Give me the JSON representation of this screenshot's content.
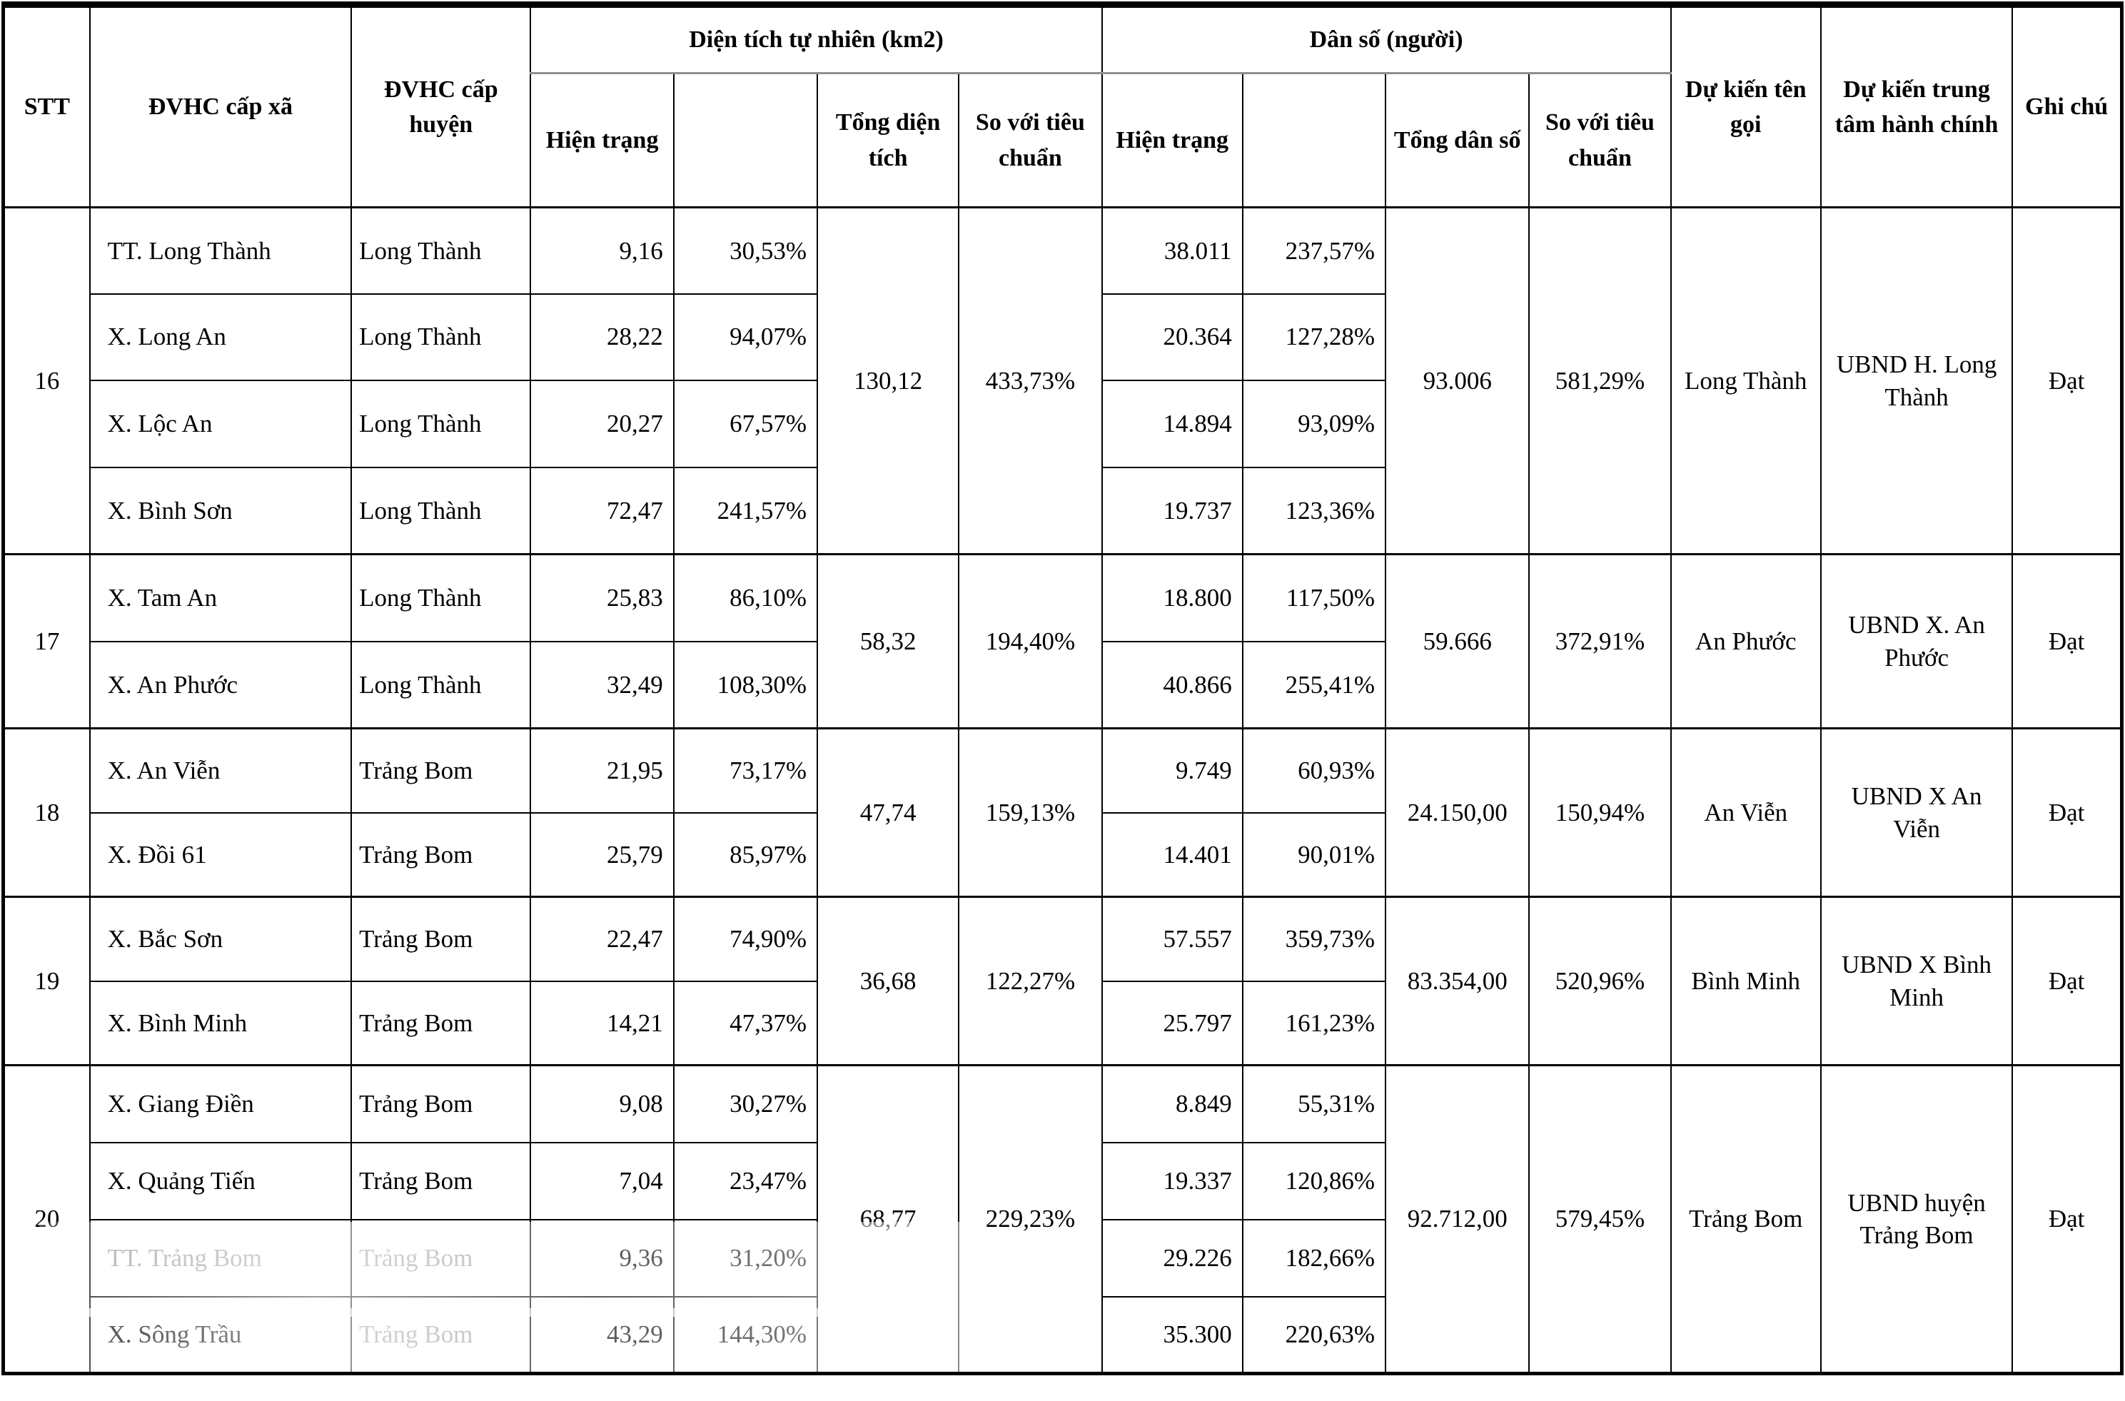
{
  "table": {
    "headers": {
      "stt": "STT",
      "commune": "ĐVHC cấp xã",
      "district": "ĐVHC cấp huyện",
      "area_group": "Diện tích tự nhiên (km2)",
      "pop_group": "Dân số (người)",
      "current_area": "Hiện trạng",
      "current_pop": "Hiện trạng",
      "total_area": "Tổng diện tích",
      "area_vs_standard": "So với tiêu chuẩn",
      "total_pop": "Tổng dân số",
      "pop_vs_standard": "So với tiêu chuẩn",
      "expected_name": "Dự kiến tên gọi",
      "expected_center": "Dự kiến trung tâm hành chính",
      "note": "Ghi chú"
    },
    "groups": [
      {
        "stt": "16",
        "rows": [
          {
            "commune": "TT. Long Thành",
            "district": "Long Thành",
            "area": "9,16",
            "area_pct": "30,53%",
            "pop": "38.011",
            "pop_pct": "237,57%"
          },
          {
            "commune": "X. Long An",
            "district": "Long Thành",
            "area": "28,22",
            "area_pct": "94,07%",
            "pop": "20.364",
            "pop_pct": "127,28%"
          },
          {
            "commune": "X. Lộc An",
            "district": "Long Thành",
            "area": "20,27",
            "area_pct": "67,57%",
            "pop": "14.894",
            "pop_pct": "93,09%"
          },
          {
            "commune": "X. Bình Sơn",
            "district": "Long Thành",
            "area": "72,47",
            "area_pct": "241,57%",
            "pop": "19.737",
            "pop_pct": "123,36%"
          }
        ],
        "total_area": "130,12",
        "area_vs": "433,73%",
        "total_pop": "93.006",
        "pop_vs": "581,29%",
        "name": "Long Thành",
        "center": "UBND H. Long Thành",
        "note": "Đạt"
      },
      {
        "stt": "17",
        "rows": [
          {
            "commune": "X. Tam An",
            "district": "Long Thành",
            "area": "25,83",
            "area_pct": "86,10%",
            "pop": "18.800",
            "pop_pct": "117,50%"
          },
          {
            "commune": "X. An Phước",
            "district": "Long Thành",
            "area": "32,49",
            "area_pct": "108,30%",
            "pop": "40.866",
            "pop_pct": "255,41%"
          }
        ],
        "total_area": "58,32",
        "area_vs": "194,40%",
        "total_pop": "59.666",
        "pop_vs": "372,91%",
        "name": "An Phước",
        "center": "UBND X. An Phước",
        "note": "Đạt"
      },
      {
        "stt": "18",
        "rows": [
          {
            "commune": "X. An Viễn",
            "district": "Trảng Bom",
            "area": "21,95",
            "area_pct": "73,17%",
            "pop": "9.749",
            "pop_pct": "60,93%"
          },
          {
            "commune": "X. Đồi 61",
            "district": "Trảng Bom",
            "area": "25,79",
            "area_pct": "85,97%",
            "pop": "14.401",
            "pop_pct": "90,01%"
          }
        ],
        "total_area": "47,74",
        "area_vs": "159,13%",
        "total_pop": "24.150,00",
        "pop_vs": "150,94%",
        "name": "An Viễn",
        "center": "UBND X An Viễn",
        "note": "Đạt"
      },
      {
        "stt": "19",
        "rows": [
          {
            "commune": "X. Bắc Sơn",
            "district": "Trảng Bom",
            "area": "22,47",
            "area_pct": "74,90%",
            "pop": "57.557",
            "pop_pct": "359,73%"
          },
          {
            "commune": "X. Bình Minh",
            "district": "Trảng Bom",
            "area": "14,21",
            "area_pct": "47,37%",
            "pop": "25.797",
            "pop_pct": "161,23%"
          }
        ],
        "total_area": "36,68",
        "area_vs": "122,27%",
        "total_pop": "83.354,00",
        "pop_vs": "520,96%",
        "name": "Bình Minh",
        "center": "UBND X Bình Minh",
        "note": "Đạt"
      },
      {
        "stt": "20",
        "rows": [
          {
            "commune": "X. Giang Điền",
            "district": "Trảng Bom",
            "area": "9,08",
            "area_pct": "30,27%",
            "pop": "8.849",
            "pop_pct": "55,31%"
          },
          {
            "commune": "X. Quảng Tiến",
            "district": "Trảng Bom",
            "area": "7,04",
            "area_pct": "23,47%",
            "pop": "19.337",
            "pop_pct": "120,86%"
          },
          {
            "commune": "TT. Trảng Bom",
            "district": "Trảng Bom",
            "area": "9,36",
            "area_pct": "31,20%",
            "pop": "29.226",
            "pop_pct": "182,66%"
          },
          {
            "commune": "X. Sông Trầu",
            "district": "Trảng Bom",
            "area": "43,29",
            "area_pct": "144,30%",
            "pop": "35.300",
            "pop_pct": "220,63%"
          }
        ],
        "total_area": "68,77",
        "area_vs": "229,23%",
        "total_pop": "92.712,00",
        "pop_vs": "579,45%",
        "name": "Trảng Bom",
        "center": "UBND huyện Trảng Bom",
        "note": "Đạt"
      }
    ]
  }
}
